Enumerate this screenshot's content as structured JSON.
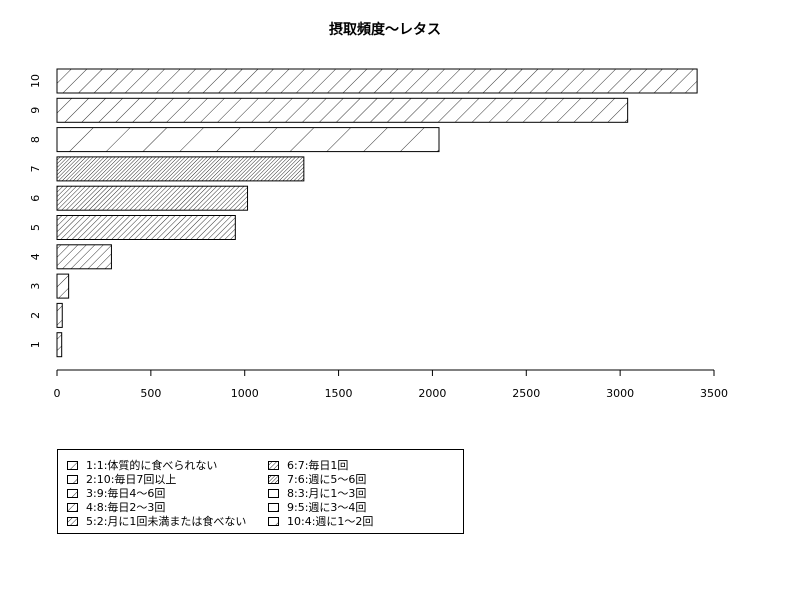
{
  "chart_data": {
    "type": "bar",
    "orientation": "horizontal",
    "title": "摂取頻度〜レタス",
    "xlabel": "",
    "ylabel": "",
    "xlim": [
      0,
      3500
    ],
    "x_ticks": [
      "0",
      "500",
      "1000",
      "1500",
      "2000",
      "2500",
      "3000",
      "3500"
    ],
    "categories": [
      "1",
      "2",
      "3",
      "4",
      "5",
      "6",
      "7",
      "8",
      "9",
      "10"
    ],
    "values": [
      25,
      28,
      62,
      290,
      950,
      1015,
      1315,
      2035,
      3040,
      3410
    ],
    "fill": "hatched",
    "grid": false,
    "legend_position": "bottom-left",
    "legend": [
      "1:1:体質的に食べられない",
      "2:10:毎日7回以上",
      "3:9:毎日4〜6回",
      "4:8:毎日2〜3回",
      "5:2:月に1回未満または食べない",
      "6:7:毎日1回",
      "7:6:週に5〜6回",
      "8:3:月に1〜3回",
      "9:5:週に3〜4回",
      "10:4:週に1〜2回"
    ]
  }
}
